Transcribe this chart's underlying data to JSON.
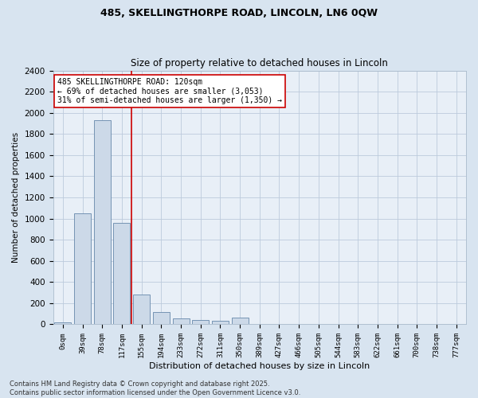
{
  "title_line1": "485, SKELLINGTHORPE ROAD, LINCOLN, LN6 0QW",
  "title_line2": "Size of property relative to detached houses in Lincoln",
  "xlabel": "Distribution of detached houses by size in Lincoln",
  "ylabel": "Number of detached properties",
  "categories": [
    "0sqm",
    "39sqm",
    "78sqm",
    "117sqm",
    "155sqm",
    "194sqm",
    "233sqm",
    "272sqm",
    "311sqm",
    "350sqm",
    "389sqm",
    "427sqm",
    "466sqm",
    "505sqm",
    "544sqm",
    "583sqm",
    "622sqm",
    "661sqm",
    "700sqm",
    "738sqm",
    "777sqm"
  ],
  "values": [
    20,
    1050,
    1930,
    960,
    280,
    115,
    55,
    40,
    30,
    65,
    0,
    0,
    0,
    0,
    0,
    0,
    0,
    0,
    0,
    0,
    0
  ],
  "bar_color": "#ccd9e8",
  "bar_edge_color": "#6688aa",
  "highlight_color": "#cc0000",
  "vline_index": 3,
  "annotation_line1": "485 SKELLINGTHORPE ROAD: 120sqm",
  "annotation_line2": "← 69% of detached houses are smaller (3,053)",
  "annotation_line3": "31% of semi-detached houses are larger (1,350) →",
  "annotation_box_color": "#ffffff",
  "annotation_box_edge": "#cc0000",
  "ylim": [
    0,
    2400
  ],
  "yticks": [
    0,
    200,
    400,
    600,
    800,
    1000,
    1200,
    1400,
    1600,
    1800,
    2000,
    2200,
    2400
  ],
  "grid_color": "#bccbdc",
  "background_color": "#d8e4f0",
  "plot_bg_color": "#e8eff7",
  "footer_line1": "Contains HM Land Registry data © Crown copyright and database right 2025.",
  "footer_line2": "Contains public sector information licensed under the Open Government Licence v3.0.",
  "title1_fontsize": 9,
  "title2_fontsize": 8.5,
  "ylabel_fontsize": 7.5,
  "xlabel_fontsize": 8,
  "ytick_fontsize": 7.5,
  "xtick_fontsize": 6.5,
  "annot_fontsize": 7,
  "footer_fontsize": 6
}
